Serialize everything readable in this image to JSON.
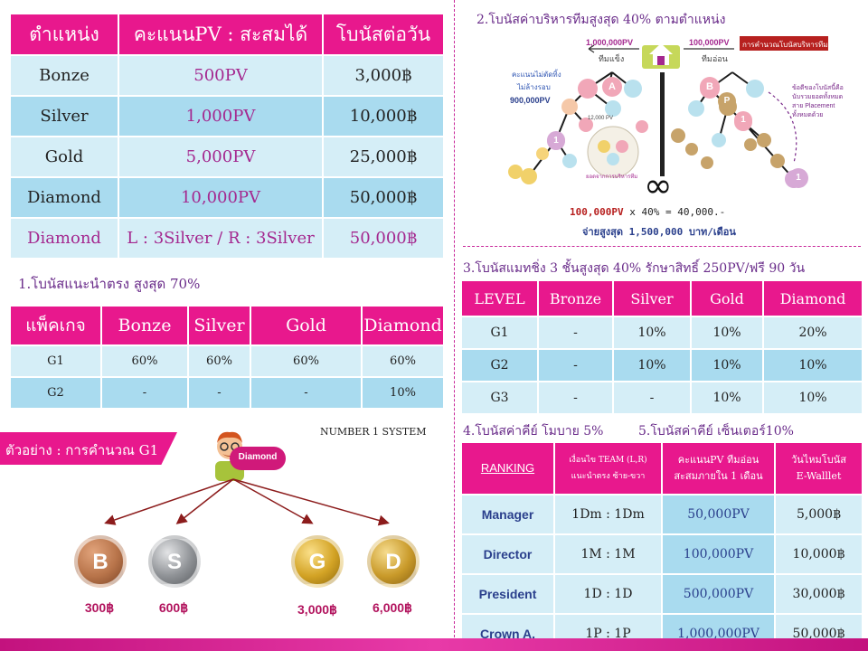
{
  "rank_table": {
    "headers": [
      "ตำแหน่ง",
      "คะแนนPV : สะสมได้",
      "โบนัสต่อวัน"
    ],
    "rows": [
      [
        "Bonze",
        "500PV",
        "3,000฿"
      ],
      [
        "Silver",
        "1,000PV",
        "10,000฿"
      ],
      [
        "Gold",
        "5,000PV",
        "25,000฿"
      ],
      [
        "Diamond",
        "10,000PV",
        "50,000฿"
      ],
      [
        "Diamond",
        "L : 3Silver  / R : 3Silver",
        "50,000฿"
      ]
    ]
  },
  "section1": {
    "heading": "1.โบนัสแนะนำตรง สูงสุด 70%",
    "headers": [
      "แพ็คเกจ",
      "Bonze",
      "Silver",
      "Gold",
      "Diamond"
    ],
    "rows": [
      [
        "G1",
        "60%",
        "60%",
        "60%",
        "60%"
      ],
      [
        "G2",
        "-",
        "-",
        "-",
        "10%"
      ]
    ]
  },
  "example": {
    "title": "ตัวอย่าง : การคำนวณ G1",
    "system": "NUMBER 1 SYSTEM",
    "root_label": "Diamond",
    "medals": [
      {
        "letter": "B",
        "name": "BRONZE",
        "amount": "300฿",
        "color": "#b8744a"
      },
      {
        "letter": "S",
        "name": "SILVER",
        "amount": "600฿",
        "color": "#8f9296"
      },
      {
        "letter": "G",
        "name": "GOLD",
        "amount": "3,000฿",
        "color": "#d3a325"
      },
      {
        "letter": "D",
        "name": "DIAMOND",
        "amount": "6,000฿",
        "color": "#c99a2a"
      }
    ]
  },
  "section2": {
    "heading": "2.โบนัสค่าบริหารทีมสูงสุด 40% ตามตำแหน่ง",
    "strong_pv": "1,000,000PV",
    "strong_label": "ทีมแข็ง",
    "weak_pv": "100,000PV",
    "weak_label": "ทีมอ่อน",
    "badge": "การคำนวณโบนัสบริหารทีม",
    "carry_note_1": "คะแนนไม่ตัดทิ้ง",
    "carry_note_2": "ไม่ล้างรอบ",
    "carry_value": "900,000PV",
    "right_note_1": "ข้อดีของโบนัสนี้คือ",
    "right_note_2": "นับรวมยอดทั้งหมด",
    "right_note_3": "สาย Placement",
    "right_note_4": "ทั้งหมดด้วย",
    "small_1": "12,000 PV",
    "small_2": "ยอดจากการบริหารทีม",
    "formula_pv": "100,000PV",
    "formula_rest": " x 40% = 40,000.-",
    "max_pay": "จ่ายสูงสุด 1,500,000 บาท/เดือน",
    "infinity": "∞"
  },
  "section3": {
    "heading": "3.โบนัสแมทชิ่ง 3 ชั้นสูงสุด 40% รักษาสิทธิ์ 250PV/ฟรี 90 วัน",
    "headers": [
      "LEVEL",
      "Bronze",
      "Silver",
      "Gold",
      "Diamond"
    ],
    "rows": [
      [
        "G1",
        "-",
        "10%",
        "10%",
        "20%"
      ],
      [
        "G2",
        "-",
        "10%",
        "10%",
        "10%"
      ],
      [
        "G3",
        "-",
        "-",
        "10%",
        "10%"
      ]
    ]
  },
  "section45": {
    "heading_4": "4.โบนัสค่าคีย์ โมบาย 5%",
    "heading_5": "5.โบนัสค่าคีย์ เซ็นเตอร์10%",
    "headers": [
      "RANKING",
      "เงื่อนไข TEAM (L,R) แนะนำตรง ซ้าย-ขวา",
      "คะแนนPV ทีมอ่อน สะสมภายใน 1 เดือน",
      "วันไหมโบนัส E-Walllet"
    ],
    "rows": [
      [
        "Manager",
        "1Dm : 1Dm",
        "50,000PV",
        "5,000฿"
      ],
      [
        "Director",
        "1M : 1M",
        "100,000PV",
        "10,000฿"
      ],
      [
        "President",
        "1D : 1D",
        "500,000PV",
        "30,000฿"
      ],
      [
        "Crown A.",
        "1P : 1P",
        "1,000,000PV",
        "50,000฿"
      ]
    ]
  },
  "colors": {
    "magenta": "#e8188d",
    "light_blue": "#d5eef7",
    "mid_blue": "#a9dbef",
    "purple_text": "#a4288f",
    "navy_text": "#2a3f8c"
  }
}
